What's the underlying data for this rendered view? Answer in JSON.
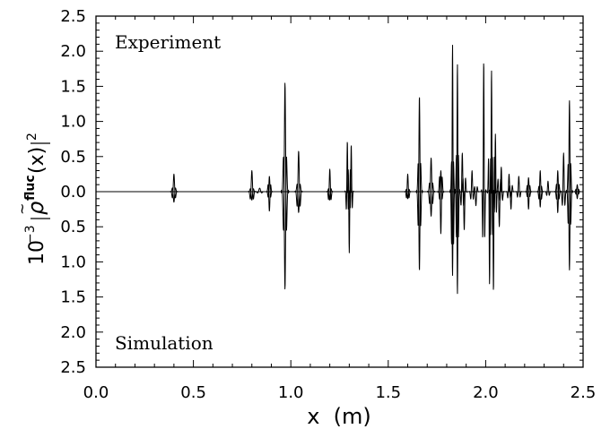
{
  "chart_data": {
    "type": "line",
    "title": "",
    "xlabel": "x  (m)",
    "ylabel": {
      "prefix": "10",
      "exponent": "−3",
      "rho": "ρ",
      "tilde": "~",
      "superscript": "fluc",
      "argument": "(x)",
      "square": "2"
    },
    "xlim": [
      0.0,
      2.5
    ],
    "ylim": [
      -2.5,
      2.5
    ],
    "y_axis_note": "absolute values shown on both halves; Experiment plotted upward, Simulation plotted downward",
    "grid": false,
    "x_ticks": [
      "0.0",
      "0.5",
      "1.0",
      "1.5",
      "2.0",
      "2.5"
    ],
    "y_ticks": [
      {
        "value": 2.5,
        "label": "2.5"
      },
      {
        "value": 2.0,
        "label": "2.0"
      },
      {
        "value": 1.5,
        "label": "1.5"
      },
      {
        "value": 1.0,
        "label": "1.0"
      },
      {
        "value": 0.5,
        "label": "0.5"
      },
      {
        "value": 0.0,
        "label": "0.0"
      },
      {
        "value": -0.5,
        "label": "0.5"
      },
      {
        "value": -1.0,
        "label": "1.0"
      },
      {
        "value": -1.5,
        "label": "1.5"
      },
      {
        "value": -2.0,
        "label": "2.0"
      },
      {
        "value": -2.5,
        "label": "2.5"
      }
    ],
    "annotations": {
      "top": "Experiment",
      "bottom": "Simulation"
    },
    "series": [
      {
        "key": "experiment",
        "direction": 1,
        "peaks": [
          {
            "x": 0.4,
            "h": 0.25,
            "w": 0.006
          },
          {
            "x": 0.8,
            "h": 0.3,
            "w": 0.006
          },
          {
            "x": 0.84,
            "h": 0.05,
            "w": 0.008
          },
          {
            "x": 0.89,
            "h": 0.22,
            "w": 0.005
          },
          {
            "x": 0.97,
            "h": 1.55,
            "w": 0.006
          },
          {
            "x": 1.04,
            "h": 0.58,
            "w": 0.006
          },
          {
            "x": 1.2,
            "h": 0.32,
            "w": 0.005
          },
          {
            "x": 1.29,
            "h": 0.72,
            "w": 0.004
          },
          {
            "x": 1.31,
            "h": 0.67,
            "w": 0.004
          },
          {
            "x": 1.6,
            "h": 0.25,
            "w": 0.005
          },
          {
            "x": 1.66,
            "h": 1.36,
            "w": 0.005
          },
          {
            "x": 1.72,
            "h": 0.48,
            "w": 0.006
          },
          {
            "x": 1.77,
            "h": 0.3,
            "w": 0.005
          },
          {
            "x": 1.83,
            "h": 2.1,
            "w": 0.004
          },
          {
            "x": 1.855,
            "h": 1.82,
            "w": 0.004
          },
          {
            "x": 1.88,
            "h": 0.55,
            "w": 0.005
          },
          {
            "x": 1.93,
            "h": 0.3,
            "w": 0.005
          },
          {
            "x": 1.99,
            "h": 1.87,
            "w": 0.004
          },
          {
            "x": 2.03,
            "h": 1.73,
            "w": 0.004
          },
          {
            "x": 2.05,
            "h": 0.82,
            "w": 0.004
          },
          {
            "x": 2.08,
            "h": 0.35,
            "w": 0.005
          },
          {
            "x": 2.12,
            "h": 0.25,
            "w": 0.005
          },
          {
            "x": 2.17,
            "h": 0.22,
            "w": 0.005
          },
          {
            "x": 2.22,
            "h": 0.2,
            "w": 0.005
          },
          {
            "x": 2.28,
            "h": 0.3,
            "w": 0.005
          },
          {
            "x": 2.32,
            "h": 0.15,
            "w": 0.005
          },
          {
            "x": 2.37,
            "h": 0.3,
            "w": 0.005
          },
          {
            "x": 2.4,
            "h": 0.55,
            "w": 0.005
          },
          {
            "x": 2.43,
            "h": 1.3,
            "w": 0.005
          },
          {
            "x": 2.47,
            "h": 0.1,
            "w": 0.005
          }
        ]
      },
      {
        "key": "simulation",
        "direction": -1,
        "peaks": [
          {
            "x": 0.4,
            "h": 0.15,
            "w": 0.006
          },
          {
            "x": 0.8,
            "h": 0.12,
            "w": 0.006
          },
          {
            "x": 0.89,
            "h": 0.28,
            "w": 0.005
          },
          {
            "x": 0.97,
            "h": 1.39,
            "w": 0.006
          },
          {
            "x": 1.04,
            "h": 0.3,
            "w": 0.006
          },
          {
            "x": 1.2,
            "h": 0.12,
            "w": 0.005
          },
          {
            "x": 1.3,
            "h": 0.87,
            "w": 0.004
          },
          {
            "x": 1.6,
            "h": 0.1,
            "w": 0.005
          },
          {
            "x": 1.66,
            "h": 1.13,
            "w": 0.005
          },
          {
            "x": 1.72,
            "h": 0.35,
            "w": 0.006
          },
          {
            "x": 1.77,
            "h": 0.6,
            "w": 0.005
          },
          {
            "x": 1.83,
            "h": 1.2,
            "w": 0.004
          },
          {
            "x": 1.855,
            "h": 1.46,
            "w": 0.004
          },
          {
            "x": 1.89,
            "h": 0.55,
            "w": 0.005
          },
          {
            "x": 1.95,
            "h": 0.2,
            "w": 0.005
          },
          {
            "x": 2.02,
            "h": 1.32,
            "w": 0.004
          },
          {
            "x": 2.04,
            "h": 1.43,
            "w": 0.004
          },
          {
            "x": 2.07,
            "h": 0.5,
            "w": 0.005
          },
          {
            "x": 2.13,
            "h": 0.25,
            "w": 0.005
          },
          {
            "x": 2.22,
            "h": 0.25,
            "w": 0.005
          },
          {
            "x": 2.28,
            "h": 0.22,
            "w": 0.005
          },
          {
            "x": 2.37,
            "h": 0.3,
            "w": 0.005
          },
          {
            "x": 2.43,
            "h": 1.12,
            "w": 0.005
          },
          {
            "x": 2.47,
            "h": 0.1,
            "w": 0.005
          }
        ]
      }
    ]
  }
}
